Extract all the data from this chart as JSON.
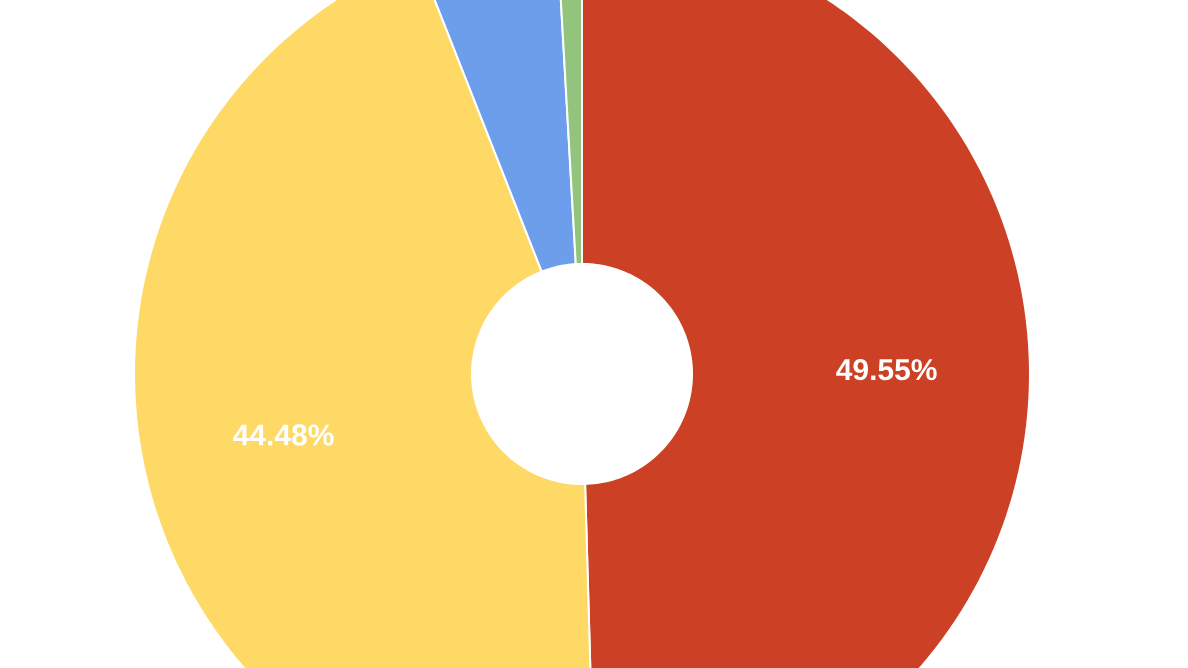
{
  "chart_data": {
    "type": "donut",
    "categories": [
      null,
      null,
      null,
      null
    ],
    "values": [
      49.55,
      44.48,
      5.07,
      0.9
    ],
    "colors": [
      "#cc4125",
      "#ffd966",
      "#6d9eeb",
      "#93c47d"
    ],
    "value_labels": [
      "49.55%",
      "44.48%",
      null,
      null
    ]
  }
}
